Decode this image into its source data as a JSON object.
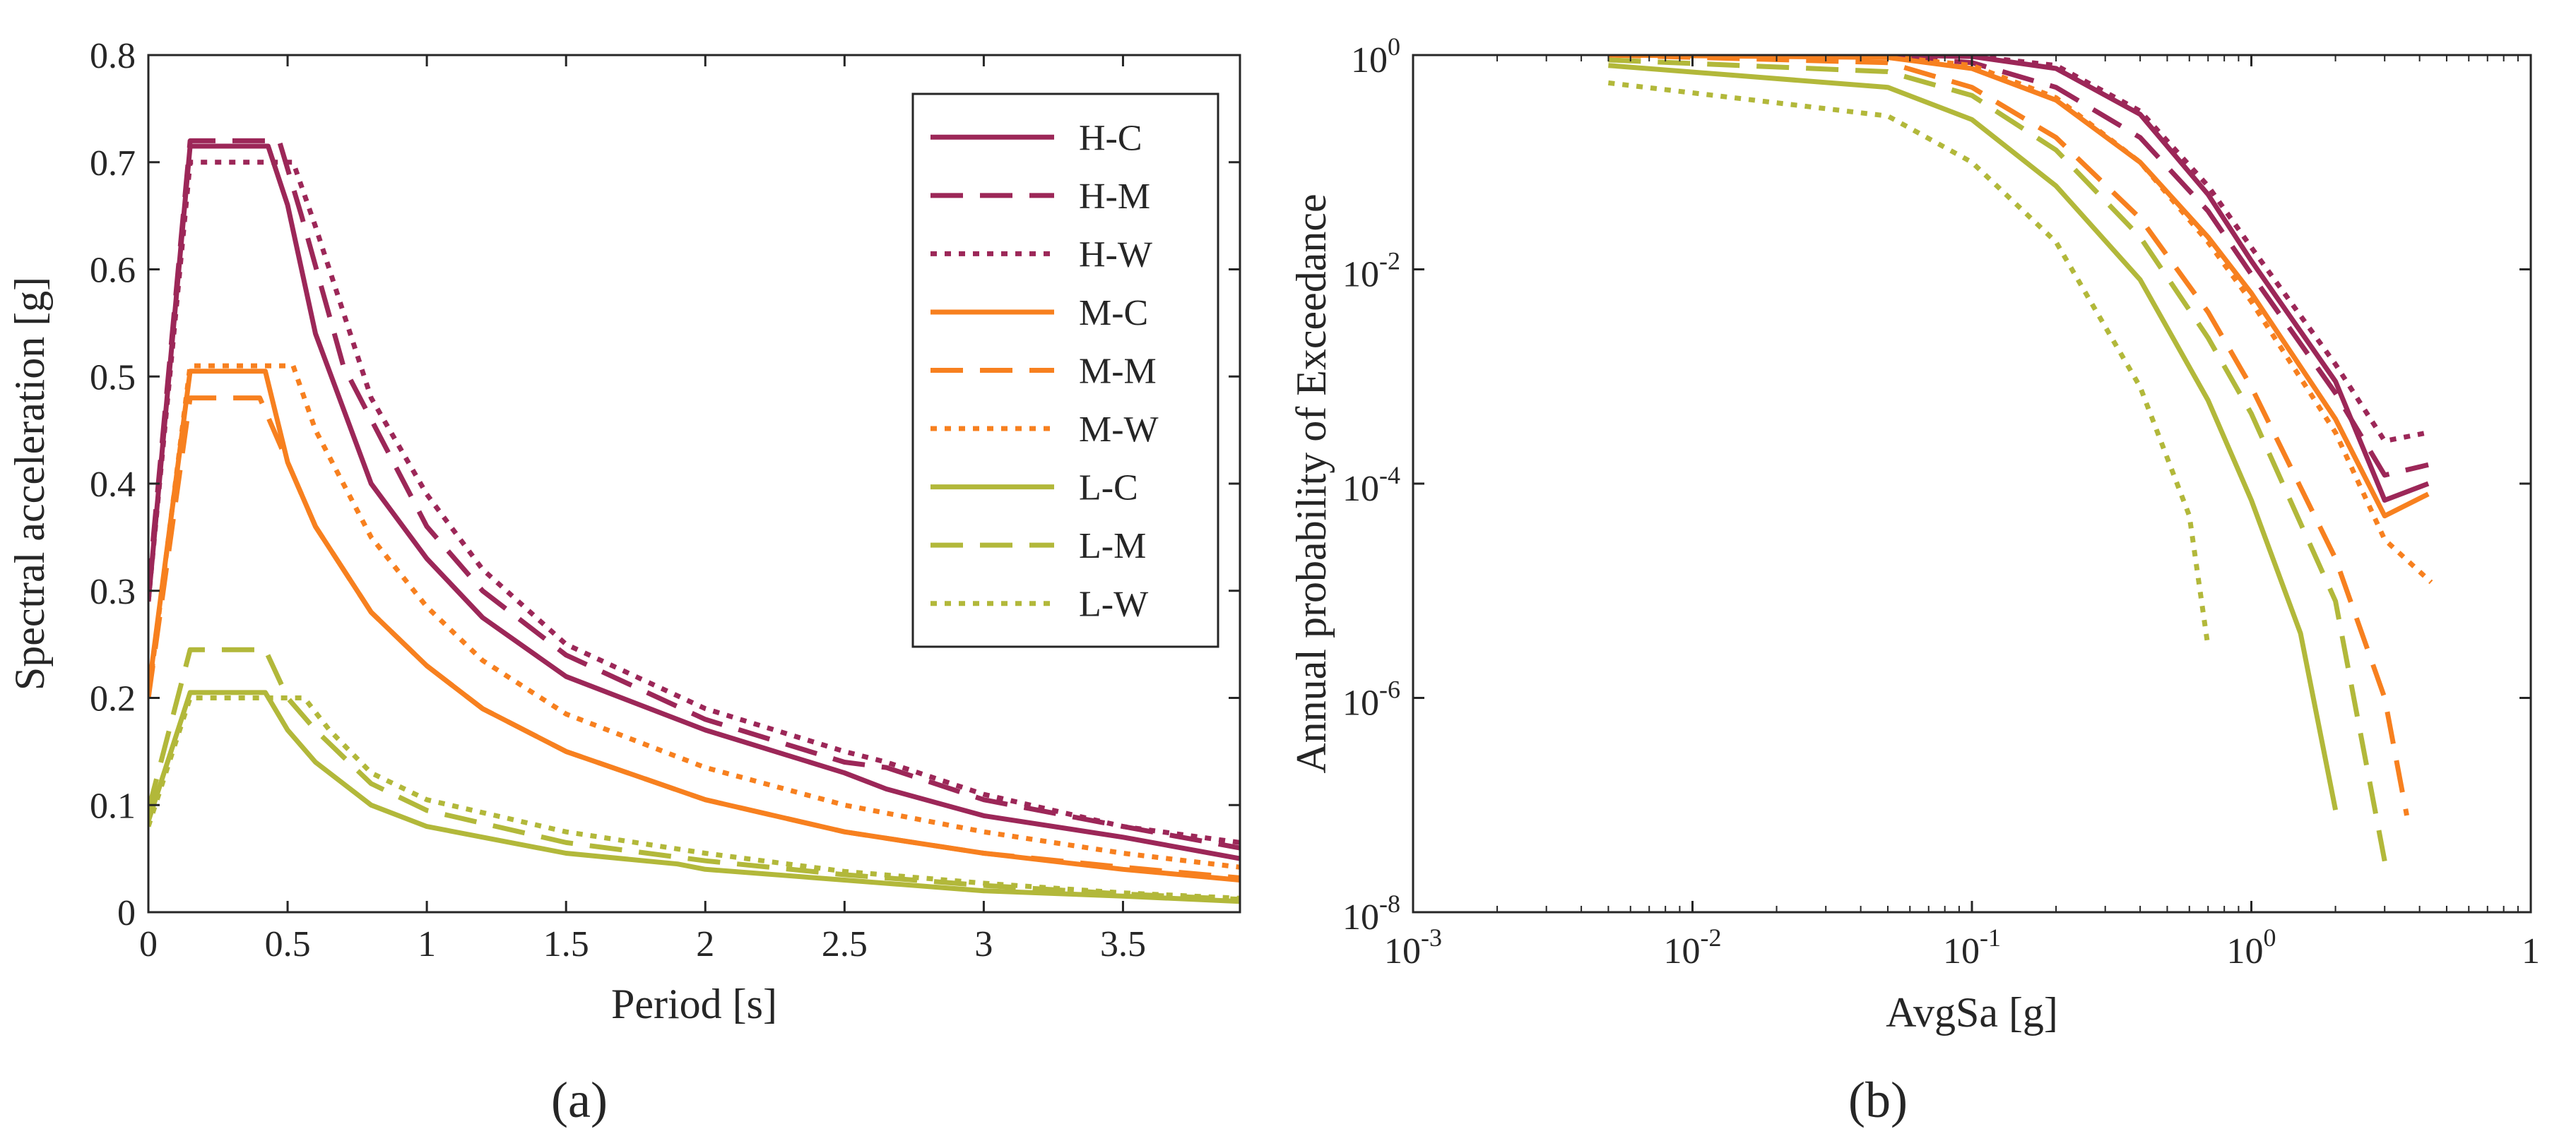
{
  "figure": {
    "panel_a_label": "(a)",
    "panel_b_label": "(b)"
  },
  "colors": {
    "H": "#9c2758",
    "M": "#f7801f",
    "L": "#b2b83a",
    "axis": "#262626"
  },
  "line_styles": {
    "C": "solid",
    "M": "dashed",
    "W": "dotted"
  },
  "chart_data": [
    {
      "type": "line",
      "panel": "(a)",
      "xlabel": "Period [s]",
      "ylabel": "Spectral acceleration [g]",
      "xlim": [
        0,
        3.92
      ],
      "ylim": [
        0,
        0.8
      ],
      "x_ticks": [
        0,
        0.5,
        1,
        1.5,
        2,
        2.5,
        3,
        3.5
      ],
      "x_tick_labels": [
        "0",
        "0.5",
        "1",
        "1.5",
        "2",
        "2.5",
        "3",
        "3.5"
      ],
      "y_ticks": [
        0,
        0.1,
        0.2,
        0.3,
        0.4,
        0.5,
        0.6,
        0.7,
        0.8
      ],
      "y_tick_labels": [
        "0",
        "0.1",
        "0.2",
        "0.3",
        "0.4",
        "0.5",
        "0.6",
        "0.7",
        "0.8"
      ],
      "grid": false,
      "legend_position": "top-right",
      "series": [
        {
          "name": "H-C",
          "group": "H",
          "style": "C",
          "points": [
            [
              0,
              0.29
            ],
            [
              0.15,
              0.715
            ],
            [
              0.43,
              0.715
            ],
            [
              0.5,
              0.66
            ],
            [
              0.6,
              0.54
            ],
            [
              0.8,
              0.4
            ],
            [
              1.0,
              0.33
            ],
            [
              1.2,
              0.275
            ],
            [
              1.5,
              0.22
            ],
            [
              2.0,
              0.17
            ],
            [
              2.5,
              0.13
            ],
            [
              2.65,
              0.115
            ],
            [
              3.0,
              0.09
            ],
            [
              3.5,
              0.07
            ],
            [
              3.92,
              0.05
            ]
          ]
        },
        {
          "name": "H-M",
          "group": "H",
          "style": "M",
          "points": [
            [
              0,
              0.3
            ],
            [
              0.15,
              0.72
            ],
            [
              0.47,
              0.72
            ],
            [
              0.55,
              0.65
            ],
            [
              0.7,
              0.51
            ],
            [
              1.0,
              0.36
            ],
            [
              1.2,
              0.3
            ],
            [
              1.5,
              0.24
            ],
            [
              2.0,
              0.18
            ],
            [
              2.5,
              0.14
            ],
            [
              2.65,
              0.135
            ],
            [
              3.0,
              0.105
            ],
            [
              3.5,
              0.08
            ],
            [
              3.92,
              0.06
            ]
          ]
        },
        {
          "name": "H-W",
          "group": "H",
          "style": "W",
          "points": [
            [
              0,
              0.29
            ],
            [
              0.15,
              0.7
            ],
            [
              0.52,
              0.7
            ],
            [
              0.6,
              0.64
            ],
            [
              0.8,
              0.48
            ],
            [
              1.0,
              0.39
            ],
            [
              1.2,
              0.32
            ],
            [
              1.5,
              0.25
            ],
            [
              2.0,
              0.19
            ],
            [
              2.5,
              0.15
            ],
            [
              2.65,
              0.14
            ],
            [
              3.0,
              0.11
            ],
            [
              3.5,
              0.08
            ],
            [
              3.92,
              0.065
            ]
          ]
        },
        {
          "name": "M-C",
          "group": "M",
          "style": "C",
          "points": [
            [
              0,
              0.205
            ],
            [
              0.15,
              0.505
            ],
            [
              0.42,
              0.505
            ],
            [
              0.5,
              0.42
            ],
            [
              0.6,
              0.36
            ],
            [
              0.8,
              0.28
            ],
            [
              1.0,
              0.23
            ],
            [
              1.2,
              0.19
            ],
            [
              1.5,
              0.15
            ],
            [
              2.0,
              0.105
            ],
            [
              2.5,
              0.075
            ],
            [
              3.0,
              0.055
            ],
            [
              3.5,
              0.04
            ],
            [
              3.92,
              0.03
            ]
          ]
        },
        {
          "name": "M-M",
          "group": "M",
          "style": "M",
          "points": [
            [
              0,
              0.2
            ],
            [
              0.15,
              0.48
            ],
            [
              0.4,
              0.48
            ],
            [
              0.5,
              0.42
            ],
            [
              0.6,
              0.36
            ],
            [
              0.8,
              0.28
            ],
            [
              1.0,
              0.23
            ],
            [
              1.2,
              0.19
            ],
            [
              1.5,
              0.15
            ],
            [
              2.0,
              0.105
            ],
            [
              2.5,
              0.075
            ],
            [
              3.0,
              0.055
            ],
            [
              3.5,
              0.042
            ],
            [
              3.92,
              0.032
            ]
          ]
        },
        {
          "name": "M-W",
          "group": "M",
          "style": "W",
          "points": [
            [
              0,
              0.2
            ],
            [
              0.15,
              0.51
            ],
            [
              0.52,
              0.51
            ],
            [
              0.6,
              0.45
            ],
            [
              0.8,
              0.35
            ],
            [
              1.0,
              0.285
            ],
            [
              1.2,
              0.235
            ],
            [
              1.5,
              0.185
            ],
            [
              2.0,
              0.135
            ],
            [
              2.5,
              0.1
            ],
            [
              3.0,
              0.075
            ],
            [
              3.5,
              0.055
            ],
            [
              3.92,
              0.042
            ]
          ]
        },
        {
          "name": "L-C",
          "group": "L",
          "style": "C",
          "points": [
            [
              0,
              0.085
            ],
            [
              0.15,
              0.205
            ],
            [
              0.42,
              0.205
            ],
            [
              0.5,
              0.17
            ],
            [
              0.6,
              0.14
            ],
            [
              0.8,
              0.1
            ],
            [
              1.0,
              0.08
            ],
            [
              1.5,
              0.055
            ],
            [
              1.9,
              0.045
            ],
            [
              2.0,
              0.04
            ],
            [
              2.5,
              0.03
            ],
            [
              3.0,
              0.02
            ],
            [
              3.5,
              0.015
            ],
            [
              3.92,
              0.01
            ]
          ]
        },
        {
          "name": "L-M",
          "group": "L",
          "style": "M",
          "points": [
            [
              0,
              0.095
            ],
            [
              0.15,
              0.245
            ],
            [
              0.42,
              0.245
            ],
            [
              0.5,
              0.2
            ],
            [
              0.6,
              0.17
            ],
            [
              0.8,
              0.12
            ],
            [
              1.0,
              0.095
            ],
            [
              1.5,
              0.065
            ],
            [
              2.0,
              0.048
            ],
            [
              2.5,
              0.035
            ],
            [
              3.0,
              0.025
            ],
            [
              3.5,
              0.017
            ],
            [
              3.92,
              0.012
            ]
          ]
        },
        {
          "name": "L-W",
          "group": "L",
          "style": "W",
          "points": [
            [
              0,
              0.08
            ],
            [
              0.15,
              0.2
            ],
            [
              0.56,
              0.2
            ],
            [
              0.65,
              0.17
            ],
            [
              0.8,
              0.13
            ],
            [
              1.0,
              0.105
            ],
            [
              1.5,
              0.075
            ],
            [
              2.0,
              0.055
            ],
            [
              2.5,
              0.038
            ],
            [
              3.0,
              0.027
            ],
            [
              3.5,
              0.018
            ],
            [
              3.92,
              0.013
            ]
          ]
        }
      ]
    },
    {
      "type": "line",
      "panel": "(b)",
      "xlabel": "AvgSa [g]",
      "ylabel": "Annual probability of Exceedance",
      "x_scale": "log",
      "y_scale": "log",
      "xlim": [
        0.001,
        10
      ],
      "ylim": [
        1e-08,
        1
      ],
      "x_ticks": [
        0.001,
        0.01,
        0.1,
        1,
        10
      ],
      "x_tick_labels": [
        [
          "10",
          "-3"
        ],
        [
          "10",
          "-2"
        ],
        [
          "10",
          "-1"
        ],
        [
          "10",
          "0"
        ],
        [
          "1",
          ""
        ]
      ],
      "y_ticks": [
        1e-08,
        1e-06,
        0.0001,
        0.01,
        1
      ],
      "y_tick_labels": [
        [
          "10",
          "-8"
        ],
        [
          "10",
          "-6"
        ],
        [
          "10",
          "-4"
        ],
        [
          "10",
          "-2"
        ],
        [
          "10",
          "0"
        ]
      ],
      "grid": false,
      "series": [
        {
          "name": "H-C",
          "group": "H",
          "style": "C",
          "points": [
            [
              0.005,
              1.0
            ],
            [
              0.05,
              1.0
            ],
            [
              0.1,
              0.97
            ],
            [
              0.2,
              0.75
            ],
            [
              0.4,
              0.28
            ],
            [
              0.7,
              0.05
            ],
            [
              1.0,
              0.012
            ],
            [
              2.0,
              0.0009
            ],
            [
              3.0,
              7e-05
            ],
            [
              4.3,
              0.0001
            ]
          ]
        },
        {
          "name": "H-M",
          "group": "H",
          "style": "M",
          "points": [
            [
              0.005,
              1.0
            ],
            [
              0.05,
              0.97
            ],
            [
              0.1,
              0.85
            ],
            [
              0.2,
              0.5
            ],
            [
              0.4,
              0.17
            ],
            [
              0.7,
              0.035
            ],
            [
              1.0,
              0.009
            ],
            [
              2.0,
              0.0007
            ],
            [
              3.0,
              0.00012
            ],
            [
              4.3,
              0.00015
            ]
          ]
        },
        {
          "name": "H-W",
          "group": "H",
          "style": "W",
          "points": [
            [
              0.005,
              1.0
            ],
            [
              0.05,
              1.0
            ],
            [
              0.1,
              0.98
            ],
            [
              0.2,
              0.8
            ],
            [
              0.4,
              0.3
            ],
            [
              0.7,
              0.06
            ],
            [
              1.0,
              0.016
            ],
            [
              2.0,
              0.0013
            ],
            [
              3.0,
              0.00025
            ],
            [
              4.3,
              0.0003
            ]
          ]
        },
        {
          "name": "M-C",
          "group": "M",
          "style": "C",
          "points": [
            [
              0.005,
              1.0
            ],
            [
              0.05,
              0.95
            ],
            [
              0.1,
              0.75
            ],
            [
              0.2,
              0.38
            ],
            [
              0.4,
              0.1
            ],
            [
              0.7,
              0.02
            ],
            [
              1.0,
              0.006
            ],
            [
              2.0,
              0.0004
            ],
            [
              3.0,
              5e-05
            ],
            [
              4.3,
              8e-05
            ]
          ]
        },
        {
          "name": "M-M",
          "group": "M",
          "style": "M",
          "points": [
            [
              0.005,
              1.0
            ],
            [
              0.05,
              0.85
            ],
            [
              0.1,
              0.5
            ],
            [
              0.2,
              0.17
            ],
            [
              0.4,
              0.03
            ],
            [
              0.7,
              0.004
            ],
            [
              1.0,
              0.0008
            ],
            [
              2.0,
              2e-05
            ],
            [
              3.0,
              1e-06
            ],
            [
              3.6,
              8e-08
            ]
          ]
        },
        {
          "name": "M-W",
          "group": "M",
          "style": "W",
          "points": [
            [
              0.005,
              1.0
            ],
            [
              0.05,
              0.97
            ],
            [
              0.1,
              0.8
            ],
            [
              0.2,
              0.4
            ],
            [
              0.4,
              0.1
            ],
            [
              0.7,
              0.018
            ],
            [
              1.0,
              0.005
            ],
            [
              2.0,
              0.0003
            ],
            [
              3.0,
              3e-05
            ],
            [
              4.4,
              1.2e-05
            ]
          ]
        },
        {
          "name": "L-C",
          "group": "L",
          "style": "C",
          "points": [
            [
              0.005,
              0.8
            ],
            [
              0.05,
              0.5
            ],
            [
              0.1,
              0.25
            ],
            [
              0.2,
              0.06
            ],
            [
              0.4,
              0.008
            ],
            [
              0.7,
              0.0006
            ],
            [
              1.0,
              7e-05
            ],
            [
              1.5,
              4e-06
            ],
            [
              2.0,
              9e-08
            ]
          ]
        },
        {
          "name": "L-M",
          "group": "L",
          "style": "M",
          "points": [
            [
              0.005,
              0.9
            ],
            [
              0.05,
              0.7
            ],
            [
              0.1,
              0.42
            ],
            [
              0.2,
              0.13
            ],
            [
              0.4,
              0.02
            ],
            [
              0.7,
              0.0023
            ],
            [
              1.0,
              0.00045
            ],
            [
              2.0,
              8e-06
            ],
            [
              3.0,
              3e-08
            ]
          ]
        },
        {
          "name": "L-W",
          "group": "L",
          "style": "W",
          "points": [
            [
              0.005,
              0.55
            ],
            [
              0.05,
              0.27
            ],
            [
              0.1,
              0.1
            ],
            [
              0.2,
              0.018
            ],
            [
              0.4,
              0.0008
            ],
            [
              0.6,
              5e-05
            ],
            [
              0.7,
              3e-06
            ]
          ]
        }
      ]
    }
  ]
}
